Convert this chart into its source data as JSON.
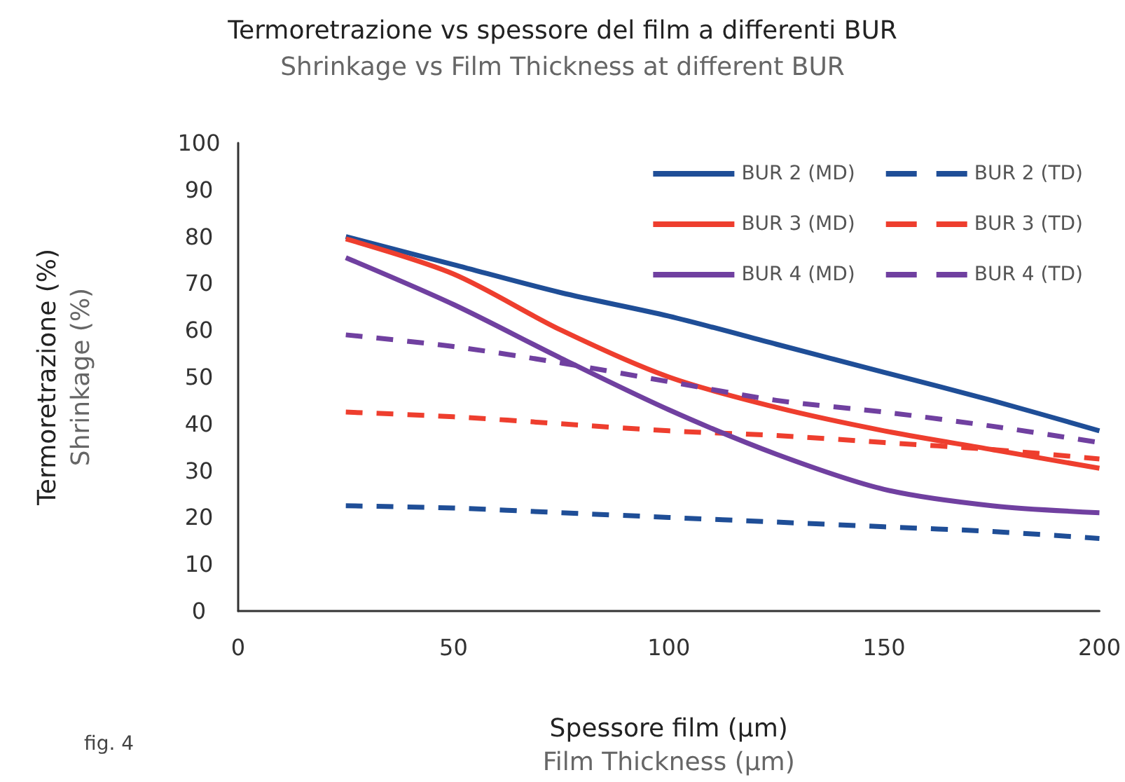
{
  "chart_data": {
    "type": "line",
    "title": "Termoretrazione vs spessore del film a differenti BUR",
    "subtitle": "Shrinkage vs Film Thickness at different BUR",
    "xlabel": "Spessore film (µm)\nFilm Thickness (µm)",
    "ylabel": "Termoretrazione (%)\nShrinkage (%)",
    "annotations": [
      "fig. 4"
    ],
    "x": [
      25,
      50,
      75,
      100,
      125,
      150,
      175,
      200
    ],
    "series": [
      {
        "name": "BUR 2 (MD)",
        "color": "#1f4e97",
        "line_style": "solid",
        "values": [
          80,
          74,
          68,
          63,
          57,
          51,
          45,
          38.5
        ]
      },
      {
        "name": "BUR 2 (TD)",
        "color": "#1f4e97",
        "line_style": "dashed",
        "values": [
          22.5,
          22,
          21,
          20,
          19,
          18,
          17,
          15.5
        ]
      },
      {
        "name": "BUR 3 (MD)",
        "color": "#ee3e2e",
        "line_style": "solid",
        "values": [
          79.5,
          72,
          60,
          50,
          43.5,
          38.5,
          34.5,
          30.5
        ]
      },
      {
        "name": "BUR 3 (TD)",
        "color": "#ee3e2e",
        "line_style": "dashed",
        "values": [
          42.5,
          41.5,
          40,
          38.5,
          37.5,
          36,
          34.5,
          32.5
        ]
      },
      {
        "name": "BUR 4 (MD)",
        "color": "#7040a0",
        "line_style": "solid",
        "values": [
          75.5,
          65.5,
          54,
          43,
          33.5,
          26,
          22.5,
          21
        ]
      },
      {
        "name": "BUR 4 (TD)",
        "color": "#7040a0",
        "line_style": "dashed",
        "values": [
          59,
          56.5,
          53,
          49,
          45,
          42.5,
          39.5,
          36
        ]
      }
    ],
    "xlim": [
      0,
      200
    ],
    "xticks": [
      0,
      50,
      100,
      150,
      200
    ],
    "ylim": [
      0,
      100
    ],
    "yticks": [
      0,
      10,
      20,
      30,
      40,
      50,
      60,
      70,
      80,
      90,
      100
    ],
    "grid": false,
    "legend": "top right",
    "marker": "none"
  }
}
